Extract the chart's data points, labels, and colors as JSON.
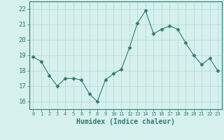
{
  "x": [
    0,
    1,
    2,
    3,
    4,
    5,
    6,
    7,
    8,
    9,
    10,
    11,
    12,
    13,
    14,
    15,
    16,
    17,
    18,
    19,
    20,
    21,
    22,
    23
  ],
  "y": [
    18.9,
    18.6,
    17.7,
    17.0,
    17.5,
    17.5,
    17.4,
    16.5,
    16.0,
    17.4,
    17.8,
    18.1,
    19.5,
    21.1,
    21.9,
    20.4,
    20.7,
    20.9,
    20.7,
    19.8,
    19.0,
    18.4,
    18.8,
    18.0
  ],
  "line_color": "#2e7d6e",
  "marker": "D",
  "marker_size": 2.5,
  "bg_color": "#d5f0ed",
  "grid_color": "#b0d8d4",
  "tick_color": "#2e7d6e",
  "xlabel": "Humidex (Indice chaleur)",
  "ylabel_ticks": [
    16,
    17,
    18,
    19,
    20,
    21,
    22
  ],
  "xlim": [
    -0.5,
    23.5
  ],
  "ylim": [
    15.5,
    22.5
  ],
  "xtick_labels": [
    "0",
    "1",
    "2",
    "3",
    "4",
    "5",
    "6",
    "7",
    "8",
    "9",
    "10",
    "11",
    "12",
    "13",
    "14",
    "15",
    "16",
    "17",
    "18",
    "19",
    "20",
    "21",
    "22",
    "23"
  ]
}
